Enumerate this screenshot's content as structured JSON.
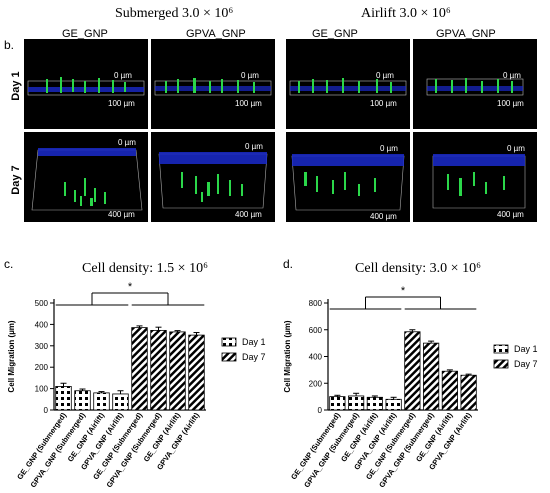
{
  "panel_b": {
    "label": "b.",
    "group_left": "Submerged 3.0 × 10⁶",
    "group_right": "Airlift 3.0 × 10⁶",
    "columns": [
      "GE_GNP",
      "GPVA_GNP",
      "GE_GNP",
      "GPVA_GNP"
    ],
    "rows": [
      "Day 1",
      "Day 7"
    ],
    "scale_day1_top": "0 µm",
    "scale_day1_bottom": "100 µm",
    "scale_day7_top": "0 µm",
    "scale_day7_bottom": "400 µm"
  },
  "panel_c": {
    "label": "c."
  },
  "panel_d": {
    "label": "d."
  },
  "chart_data": [
    {
      "type": "bar",
      "title": "Cell density: 1.5 × 10⁶",
      "ylabel": "Cell Migration (µm)",
      "xlabel": "",
      "ylim": [
        0,
        500
      ],
      "yticks": [
        0,
        100,
        200,
        300,
        400,
        500
      ],
      "categories": [
        "GE_GNP (Submerged)",
        "GPVA_GNP (Submerged)",
        "GE_GNP (Airlift)",
        "GPVA_GNP (Airlift)",
        "GE_GNP (Submerged)",
        "GPVA_GNP (Submerged)",
        "GE_GNP (Airlift)",
        "GPVA_GNP (Airlift)"
      ],
      "series": [
        {
          "name": "Day 1",
          "values": [
            110,
            90,
            80,
            75,
            null,
            null,
            null,
            null
          ],
          "errors": [
            15,
            8,
            6,
            15,
            null,
            null,
            null,
            null
          ]
        },
        {
          "name": "Day 7",
          "values": [
            null,
            null,
            null,
            null,
            385,
            372,
            365,
            350
          ],
          "errors": [
            null,
            null,
            null,
            null,
            8,
            15,
            6,
            12
          ]
        }
      ],
      "significance": "*",
      "legend": "right"
    },
    {
      "type": "bar",
      "title": "Cell density: 3.0 × 10⁶",
      "ylabel": "Cell Migration (µm)",
      "xlabel": "",
      "ylim": [
        0,
        800
      ],
      "yticks": [
        0,
        200,
        400,
        600,
        800
      ],
      "categories": [
        "GE_GNP (Submerged)",
        "GPVA_GNP (Submerged)",
        "GE_GNP (Airlift)",
        "GPVA_GNP (Airlift)",
        "GE_GNP (Submerged)",
        "GPVA_GNP (Submerged)",
        "GE_GNP (Airlift)",
        "GPVA_GNP (Airlift)"
      ],
      "series": [
        {
          "name": "Day 1",
          "values": [
            100,
            105,
            95,
            80,
            null,
            null,
            null,
            null
          ],
          "errors": [
            10,
            20,
            10,
            15,
            null,
            null,
            null,
            null
          ]
        },
        {
          "name": "Day 7",
          "values": [
            null,
            null,
            null,
            null,
            585,
            500,
            290,
            260
          ],
          "errors": [
            null,
            null,
            null,
            null,
            15,
            15,
            10,
            8
          ]
        }
      ],
      "significance": "*",
      "legend": "right"
    }
  ]
}
